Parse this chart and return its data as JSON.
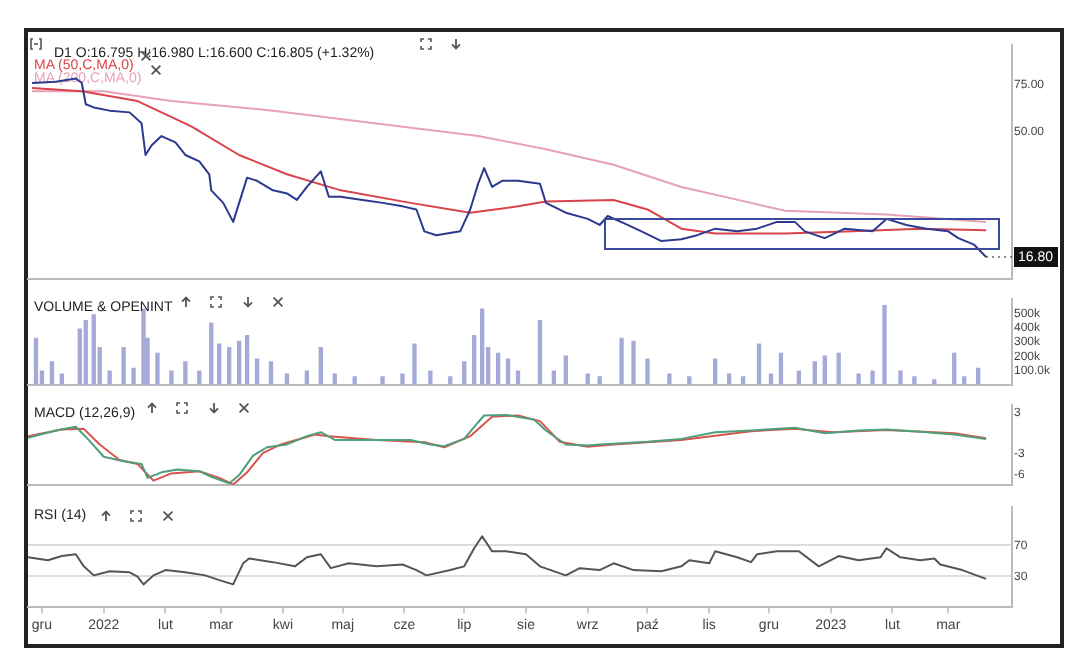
{
  "chart_data": [
    {
      "type": "line",
      "title": "D1 O:16.795 H:16.980 L:16.600 C:16.805 (+1.32%)",
      "log": "y",
      "legend": "top left",
      "tick_labels": "y",
      "xlim": [
        "2021-11-24",
        "2023-04-02"
      ],
      "ylim": [
        13.9,
        106
      ],
      "yticks": [
        {
          "value": 75,
          "label": "75.00"
        },
        {
          "value": 50,
          "label": "50.00"
        }
      ],
      "annotations": [
        {
          "text": "16.80",
          "x": "2023-03-20",
          "y": 16.8
        }
      ],
      "series": [
        {
          "color": "#2b3a8f",
          "x": [
            "2021-11-26",
            "2021-12-08",
            "2021-12-18",
            "2021-12-21",
            "2021-12-23",
            "2021-12-27",
            "2022-01-04",
            "2022-01-14",
            "2022-01-20",
            "2022-01-22",
            "2022-01-25",
            "2022-01-30",
            "2022-02-06",
            "2022-02-11",
            "2022-02-18",
            "2022-02-23",
            "2022-02-24",
            "2022-03-02",
            "2022-03-07",
            "2022-03-10",
            "2022-03-14",
            "2022-03-19",
            "2022-03-27",
            "2022-04-03",
            "2022-04-08",
            "2022-04-13",
            "2022-04-20",
            "2022-04-24",
            "2022-04-30",
            "2022-05-11",
            "2022-05-21",
            "2022-05-31",
            "2022-06-07",
            "2022-06-11",
            "2022-06-17",
            "2022-06-29",
            "2022-07-04",
            "2022-07-08",
            "2022-07-11",
            "2022-07-15",
            "2022-07-20",
            "2022-07-28",
            "2022-08-08",
            "2022-08-11",
            "2022-08-21",
            "2022-09-01",
            "2022-09-07",
            "2022-09-11",
            "2022-09-21",
            "2022-09-28",
            "2022-10-08",
            "2022-10-18",
            "2022-10-25",
            "2022-11-04",
            "2022-11-15",
            "2022-11-25",
            "2022-12-05",
            "2022-12-14",
            "2022-12-19",
            "2022-12-29",
            "2023-01-08",
            "2023-01-22",
            "2023-01-29",
            "2023-02-08",
            "2023-02-18",
            "2023-03-01",
            "2023-03-06",
            "2023-03-14",
            "2023-03-20"
          ],
          "values": [
            76.3,
            77.1,
            79.3,
            76.3,
            63.4,
            61.7,
            60.0,
            59.1,
            53.8,
            40.8,
            44.3,
            48.1,
            45.5,
            40.8,
            38.6,
            34.5,
            30.0,
            26.9,
            22.8,
            26.9,
            33.5,
            32.6,
            30.0,
            29.2,
            27.6,
            30.9,
            35.4,
            28.4,
            28.4,
            27.6,
            26.9,
            26.1,
            25.4,
            21.0,
            20.3,
            21.0,
            25.4,
            31.8,
            36.4,
            30.9,
            32.6,
            32.6,
            31.8,
            26.9,
            24.7,
            23.4,
            22.2,
            24.0,
            22.2,
            21.0,
            19.3,
            19.6,
            20.2,
            21.5,
            21.0,
            21.5,
            22.8,
            22.8,
            21.0,
            19.8,
            21.5,
            21.0,
            23.4,
            22.2,
            21.5,
            21.0,
            19.8,
            18.7,
            16.8
          ]
        },
        {
          "name": "MA (50,C,MA,0)",
          "color": "#d9434a",
          "x": [
            "2021-11-26",
            "2021-12-21",
            "2022-01-18",
            "2022-02-14",
            "2022-03-10",
            "2022-04-03",
            "2022-04-30",
            "2022-06-04",
            "2022-07-04",
            "2022-07-28",
            "2022-08-11",
            "2022-09-14",
            "2022-10-01",
            "2022-10-18",
            "2022-11-04",
            "2022-12-09",
            "2023-01-12",
            "2023-02-15",
            "2023-03-20"
          ],
          "values": [
            73.0,
            71.0,
            65.2,
            52.3,
            40.8,
            34.5,
            30.0,
            26.9,
            24.7,
            26.1,
            27.2,
            27.6,
            25.4,
            21.5,
            20.6,
            20.6,
            21.0,
            21.5,
            21.2
          ]
        },
        {
          "name": "MA (200,C,MA,0)",
          "color": "#e8a0b8",
          "x": [
            "2021-11-26",
            "2022-01-01",
            "2022-02-04",
            "2022-03-27",
            "2022-05-17",
            "2022-07-08",
            "2022-08-11",
            "2022-09-14",
            "2022-10-18",
            "2022-11-22",
            "2022-12-09",
            "2023-01-29",
            "2023-03-20"
          ],
          "values": [
            71.0,
            71.0,
            65.2,
            60.0,
            53.8,
            48.1,
            42.9,
            37.5,
            30.9,
            26.9,
            25.1,
            24.3,
            22.8
          ]
        }
      ]
    },
    {
      "type": "bar",
      "title": "VOLUME & OPENINT",
      "tick_labels": "y",
      "xlim": [
        "2021-11-24",
        "2023-04-02"
      ],
      "ylim": [
        0,
        600000
      ],
      "yticks": [
        {
          "value": 100000,
          "label": "100.0k"
        },
        {
          "value": 200000,
          "label": "200k"
        },
        {
          "value": 300000,
          "label": "300k"
        },
        {
          "value": 400000,
          "label": "400k"
        },
        {
          "value": 500000,
          "label": "500k"
        }
      ],
      "series": [
        {
          "color": "#a4a9d8",
          "x": [
            "2021-11-28",
            "2021-12-01",
            "2021-12-06",
            "2021-12-11",
            "2021-12-20",
            "2021-12-23",
            "2021-12-27",
            "2021-12-30",
            "2022-01-04",
            "2022-01-11",
            "2022-01-16",
            "2022-01-21",
            "2022-01-23",
            "2022-01-28",
            "2022-02-04",
            "2022-02-11",
            "2022-02-18",
            "2022-02-24",
            "2022-02-28",
            "2022-03-05",
            "2022-03-10",
            "2022-03-14",
            "2022-03-19",
            "2022-03-26",
            "2022-04-03",
            "2022-04-13",
            "2022-04-20",
            "2022-04-27",
            "2022-05-07",
            "2022-05-21",
            "2022-05-31",
            "2022-06-06",
            "2022-06-14",
            "2022-06-24",
            "2022-07-01",
            "2022-07-06",
            "2022-07-10",
            "2022-07-13",
            "2022-07-18",
            "2022-07-23",
            "2022-07-28",
            "2022-08-08",
            "2022-08-15",
            "2022-08-21",
            "2022-09-01",
            "2022-09-07",
            "2022-09-18",
            "2022-09-24",
            "2022-10-01",
            "2022-10-12",
            "2022-10-22",
            "2022-11-04",
            "2022-11-11",
            "2022-11-18",
            "2022-11-26",
            "2022-12-02",
            "2022-12-07",
            "2022-12-16",
            "2022-12-24",
            "2022-12-29",
            "2023-01-05",
            "2023-01-15",
            "2023-01-22",
            "2023-01-28",
            "2023-02-05",
            "2023-02-12",
            "2023-02-22",
            "2023-03-04",
            "2023-03-09",
            "2023-03-16"
          ],
          "values": [
            325000,
            95000,
            160000,
            75000,
            390000,
            450000,
            490000,
            260000,
            95000,
            260000,
            115000,
            530000,
            325000,
            220000,
            95000,
            160000,
            95000,
            430000,
            285000,
            260000,
            305000,
            345000,
            180000,
            160000,
            75000,
            95000,
            260000,
            75000,
            55000,
            55000,
            75000,
            285000,
            95000,
            55000,
            160000,
            345000,
            530000,
            260000,
            220000,
            180000,
            95000,
            450000,
            95000,
            200000,
            75000,
            55000,
            325000,
            305000,
            180000,
            75000,
            55000,
            180000,
            75000,
            55000,
            285000,
            75000,
            220000,
            95000,
            160000,
            200000,
            220000,
            75000,
            95000,
            555000,
            95000,
            55000,
            35000,
            220000,
            55000,
            115000
          ]
        }
      ]
    },
    {
      "type": "line",
      "title": "MACD (12,26,9)",
      "tick_labels": "y",
      "xlim": [
        "2021-11-24",
        "2023-04-02"
      ],
      "ylim": [
        -7.5,
        4.1
      ],
      "yticks": [
        3,
        -3,
        -6
      ],
      "series": [
        {
          "color": "#4e9f7a",
          "x": [
            "2021-11-24",
            "2021-12-08",
            "2021-12-18",
            "2021-12-24",
            "2022-01-01",
            "2022-01-11",
            "2022-01-20",
            "2022-01-23",
            "2022-01-30",
            "2022-02-07",
            "2022-02-18",
            "2022-02-24",
            "2022-03-05",
            "2022-03-10",
            "2022-03-17",
            "2022-03-24",
            "2022-04-03",
            "2022-04-13",
            "2022-04-20",
            "2022-04-27",
            "2022-05-18",
            "2022-06-04",
            "2022-06-14",
            "2022-06-21",
            "2022-07-01",
            "2022-07-08",
            "2022-07-11",
            "2022-07-22",
            "2022-08-05",
            "2022-08-11",
            "2022-08-21",
            "2022-09-01",
            "2022-09-07",
            "2022-10-01",
            "2022-10-18",
            "2022-11-04",
            "2022-11-22",
            "2022-12-14",
            "2022-12-29",
            "2023-01-15",
            "2023-01-29",
            "2023-02-15",
            "2023-03-04",
            "2023-03-20"
          ],
          "values": [
            -0.65,
            0.41,
            0.97,
            -0.81,
            -3.41,
            -4.06,
            -4.46,
            -6.49,
            -5.68,
            -5.27,
            -5.52,
            -6.33,
            -7.3,
            -6.08,
            -3.24,
            -2.03,
            -1.62,
            -0.41,
            0.16,
            -0.97,
            -0.97,
            -0.97,
            -1.62,
            -1.87,
            -0.81,
            1.62,
            2.6,
            2.68,
            2.03,
            0.41,
            -1.62,
            -1.78,
            -1.62,
            -1.22,
            -0.81,
            0.16,
            0.41,
            0.81,
            0,
            0.41,
            0.57,
            0.24,
            -0.16,
            -0.81
          ]
        },
        {
          "color": "#d9534f",
          "x": [
            "2021-11-24",
            "2021-12-11",
            "2021-12-22",
            "2021-12-30",
            "2022-01-09",
            "2022-01-18",
            "2022-01-26",
            "2022-02-04",
            "2022-02-18",
            "2022-02-28",
            "2022-03-07",
            "2022-03-14",
            "2022-03-22",
            "2022-03-31",
            "2022-04-17",
            "2022-04-24",
            "2022-05-18",
            "2022-06-11",
            "2022-06-21",
            "2022-07-04",
            "2022-07-15",
            "2022-07-28",
            "2022-08-08",
            "2022-08-18",
            "2022-09-01",
            "2022-09-14",
            "2022-10-18",
            "2022-11-22",
            "2022-12-14",
            "2023-01-02",
            "2023-01-29",
            "2023-03-04",
            "2023-03-20"
          ],
          "values": [
            -0.41,
            0.57,
            0.65,
            -1.62,
            -3.89,
            -4.46,
            -6.89,
            -5.84,
            -5.52,
            -6.49,
            -7.46,
            -5.68,
            -2.84,
            -1.62,
            -0.16,
            -0.41,
            -0.97,
            -1.3,
            -2.03,
            -0.41,
            2.43,
            2.6,
            1.78,
            -1.22,
            -1.95,
            -1.62,
            -0.97,
            0.32,
            0.65,
            0.16,
            0.49,
            0,
            -0.73
          ]
        }
      ]
    },
    {
      "type": "line",
      "title": "RSI (14)",
      "grid": "y",
      "xlim": [
        "2021-11-24",
        "2023-04-02"
      ],
      "ylim": [
        -9.5,
        119
      ],
      "yticks": [
        30,
        70
      ],
      "xticks": [
        {
          "value": "2021-12-01",
          "label": "gru"
        },
        {
          "value": "2022-01-01",
          "label": "2022"
        },
        {
          "value": "2022-02-01",
          "label": "lut"
        },
        {
          "value": "2022-03-01",
          "label": "mar"
        },
        {
          "value": "2022-04-01",
          "label": "kwi"
        },
        {
          "value": "2022-05-01",
          "label": "maj"
        },
        {
          "value": "2022-06-01",
          "label": "cze"
        },
        {
          "value": "2022-07-01",
          "label": "lip"
        },
        {
          "value": "2022-08-01",
          "label": "sie"
        },
        {
          "value": "2022-09-01",
          "label": "wrz"
        },
        {
          "value": "2022-10-01",
          "label": "paź"
        },
        {
          "value": "2022-11-01",
          "label": "lis"
        },
        {
          "value": "2022-12-01",
          "label": "gru"
        },
        {
          "value": "2023-01-01",
          "label": "2023"
        },
        {
          "value": "2023-02-01",
          "label": "lut"
        },
        {
          "value": "2023-03-01",
          "label": "mar"
        }
      ],
      "series": [
        {
          "color": "#555555",
          "x": [
            "2021-11-24",
            "2021-12-04",
            "2021-12-11",
            "2021-12-18",
            "2021-12-22",
            "2021-12-27",
            "2022-01-04",
            "2022-01-14",
            "2022-01-18",
            "2022-01-21",
            "2022-01-26",
            "2022-02-01",
            "2022-02-11",
            "2022-02-21",
            "2022-02-28",
            "2022-03-07",
            "2022-03-12",
            "2022-03-15",
            "2022-03-27",
            "2022-04-07",
            "2022-04-13",
            "2022-04-20",
            "2022-04-25",
            "2022-05-04",
            "2022-05-18",
            "2022-05-31",
            "2022-06-07",
            "2022-06-12",
            "2022-06-24",
            "2022-07-01",
            "2022-07-06",
            "2022-07-10",
            "2022-07-15",
            "2022-07-22",
            "2022-08-01",
            "2022-08-08",
            "2022-08-21",
            "2022-08-28",
            "2022-09-07",
            "2022-09-14",
            "2022-09-24",
            "2022-10-08",
            "2022-10-18",
            "2022-10-22",
            "2022-11-01",
            "2022-11-04",
            "2022-11-15",
            "2022-11-22",
            "2022-11-25",
            "2022-12-05",
            "2022-12-16",
            "2022-12-26",
            "2023-01-05",
            "2023-01-15",
            "2023-01-26",
            "2023-01-29",
            "2023-02-05",
            "2023-02-15",
            "2023-02-22",
            "2023-02-25",
            "2023-03-08",
            "2023-03-20"
          ],
          "values": [
            54.6,
            50.8,
            56.2,
            58.5,
            43.0,
            31.4,
            36.8,
            35.3,
            29.9,
            19.8,
            31.4,
            38.2,
            35.3,
            31.4,
            25.3,
            19.8,
            46.9,
            53.1,
            48.4,
            43.0,
            54.6,
            58.5,
            40.7,
            46.9,
            43.0,
            45.3,
            38.2,
            31.4,
            38.2,
            43.0,
            66.2,
            81.7,
            62.3,
            62.3,
            58.5,
            43.0,
            31.4,
            40.7,
            38.2,
            46.9,
            38.2,
            36.8,
            43.0,
            50.8,
            46.9,
            62.3,
            54.6,
            48.4,
            58.5,
            62.3,
            62.3,
            43.0,
            56.2,
            50.8,
            54.6,
            66.2,
            54.6,
            50.8,
            53.1,
            45.3,
            38.2,
            26.9
          ]
        }
      ]
    }
  ]
}
